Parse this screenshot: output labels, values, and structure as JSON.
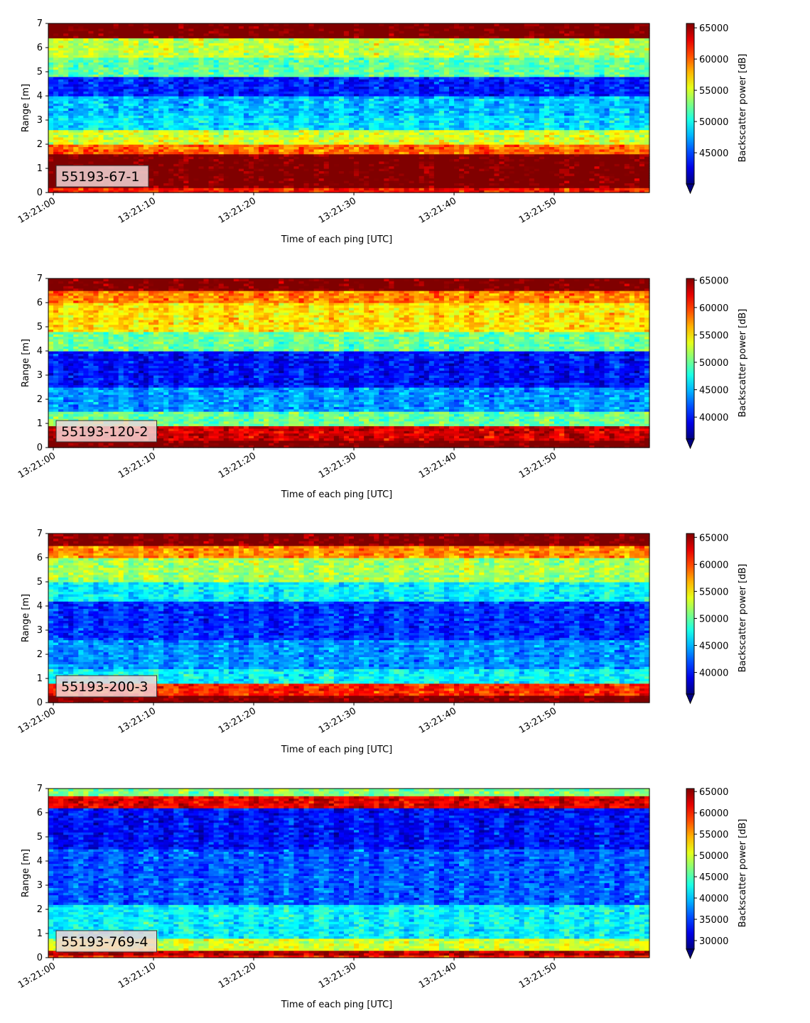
{
  "chart_data": [
    {
      "type": "heatmap",
      "label": "55193-67-1",
      "xlabel": "Time of each ping [UTC]",
      "ylabel": "Range [m]",
      "xticks": [
        "13:21:00",
        "13:21:10",
        "13:21:20",
        "13:21:30",
        "13:21:40",
        "13:21:50"
      ],
      "xlim_seconds": [
        -0.5,
        59.5
      ],
      "yticks": [
        0,
        1,
        2,
        3,
        4,
        5,
        6,
        7
      ],
      "ylim": [
        0,
        7
      ],
      "colorbar": {
        "label": "Backscatter power [dB]",
        "ticks": [
          45000,
          50000,
          55000,
          60000,
          65000
        ],
        "vmin": 40000,
        "vmax": 65700,
        "extend": "min"
      },
      "bands": [
        {
          "y": [
            0.0,
            0.25
          ],
          "value": 62000
        },
        {
          "y": [
            0.25,
            1.6
          ],
          "value": 66500
        },
        {
          "y": [
            1.6,
            2.0
          ],
          "value": 60000
        },
        {
          "y": [
            2.0,
            2.6
          ],
          "value": 55000
        },
        {
          "y": [
            2.6,
            3.2
          ],
          "value": 49000
        },
        {
          "y": [
            3.2,
            4.0
          ],
          "value": 48000
        },
        {
          "y": [
            4.0,
            4.8
          ],
          "value": 44000
        },
        {
          "y": [
            4.8,
            5.6
          ],
          "value": 52000
        },
        {
          "y": [
            5.6,
            6.4
          ],
          "value": 54500
        },
        {
          "y": [
            6.4,
            7.0
          ],
          "value": 66500
        }
      ]
    },
    {
      "type": "heatmap",
      "label": "55193-120-2",
      "xlabel": "Time of each ping [UTC]",
      "ylabel": "Range [m]",
      "xticks": [
        "13:21:00",
        "13:21:10",
        "13:21:20",
        "13:21:30",
        "13:21:40",
        "13:21:50"
      ],
      "xlim_seconds": [
        -0.5,
        59.5
      ],
      "yticks": [
        0,
        1,
        2,
        3,
        4,
        5,
        6,
        7
      ],
      "ylim": [
        0,
        7
      ],
      "colorbar": {
        "label": "Backscatter power [dB]",
        "ticks": [
          40000,
          45000,
          50000,
          55000,
          60000,
          65000
        ],
        "vmin": 36000,
        "vmax": 65300,
        "extend": "min"
      },
      "bands": [
        {
          "y": [
            0.0,
            0.3
          ],
          "value": 66000
        },
        {
          "y": [
            0.3,
            0.9
          ],
          "value": 63000
        },
        {
          "y": [
            0.9,
            1.5
          ],
          "value": 50000
        },
        {
          "y": [
            1.5,
            2.5
          ],
          "value": 44000
        },
        {
          "y": [
            2.5,
            4.0
          ],
          "value": 40000
        },
        {
          "y": [
            4.0,
            4.8
          ],
          "value": 50000
        },
        {
          "y": [
            4.8,
            6.0
          ],
          "value": 55000
        },
        {
          "y": [
            6.0,
            6.5
          ],
          "value": 58000
        },
        {
          "y": [
            6.5,
            7.0
          ],
          "value": 66000
        }
      ]
    },
    {
      "type": "heatmap",
      "label": "55193-200-3",
      "xlabel": "Time of each ping [UTC]",
      "ylabel": "Range [m]",
      "xticks": [
        "13:21:00",
        "13:21:10",
        "13:21:20",
        "13:21:30",
        "13:21:40",
        "13:21:50"
      ],
      "xlim_seconds": [
        -0.5,
        59.5
      ],
      "yticks": [
        0,
        1,
        2,
        3,
        4,
        5,
        6,
        7
      ],
      "ylim": [
        0,
        7
      ],
      "colorbar": {
        "label": "Backscatter power [dB]",
        "ticks": [
          40000,
          45000,
          50000,
          55000,
          60000,
          65000
        ],
        "vmin": 36000,
        "vmax": 65700,
        "extend": "min"
      },
      "bands": [
        {
          "y": [
            0.0,
            0.3
          ],
          "value": 66000
        },
        {
          "y": [
            0.3,
            0.8
          ],
          "value": 61000
        },
        {
          "y": [
            0.8,
            1.4
          ],
          "value": 47000
        },
        {
          "y": [
            1.4,
            2.6
          ],
          "value": 44000
        },
        {
          "y": [
            2.6,
            4.2
          ],
          "value": 41000
        },
        {
          "y": [
            4.2,
            5.0
          ],
          "value": 47000
        },
        {
          "y": [
            5.0,
            6.0
          ],
          "value": 52000
        },
        {
          "y": [
            6.0,
            6.5
          ],
          "value": 58000
        },
        {
          "y": [
            6.5,
            7.0
          ],
          "value": 66000
        }
      ]
    },
    {
      "type": "heatmap",
      "label": "55193-769-4",
      "xlabel": "Time of each ping [UTC]",
      "ylabel": "Range [m]",
      "xticks": [
        "13:21:00",
        "13:21:10",
        "13:21:20",
        "13:21:30",
        "13:21:40",
        "13:21:50"
      ],
      "xlim_seconds": [
        -0.5,
        59.5
      ],
      "yticks": [
        0,
        1,
        2,
        3,
        4,
        5,
        6,
        7
      ],
      "ylim": [
        0,
        7
      ],
      "colorbar": {
        "label": "Backscatter power [dB]",
        "ticks": [
          30000,
          35000,
          40000,
          45000,
          50000,
          55000,
          60000,
          65000
        ],
        "vmin": 28000,
        "vmax": 65700,
        "extend": "min"
      },
      "bands": [
        {
          "y": [
            0.0,
            0.15
          ],
          "value": 60000
        },
        {
          "y": [
            0.15,
            0.35
          ],
          "value": 64000
        },
        {
          "y": [
            0.35,
            0.8
          ],
          "value": 50000
        },
        {
          "y": [
            0.8,
            2.2
          ],
          "value": 42000
        },
        {
          "y": [
            2.2,
            4.5
          ],
          "value": 36000
        },
        {
          "y": [
            4.5,
            6.2
          ],
          "value": 33000
        },
        {
          "y": [
            6.2,
            6.7
          ],
          "value": 62000
        },
        {
          "y": [
            6.7,
            7.0
          ],
          "value": 47000
        }
      ]
    }
  ]
}
